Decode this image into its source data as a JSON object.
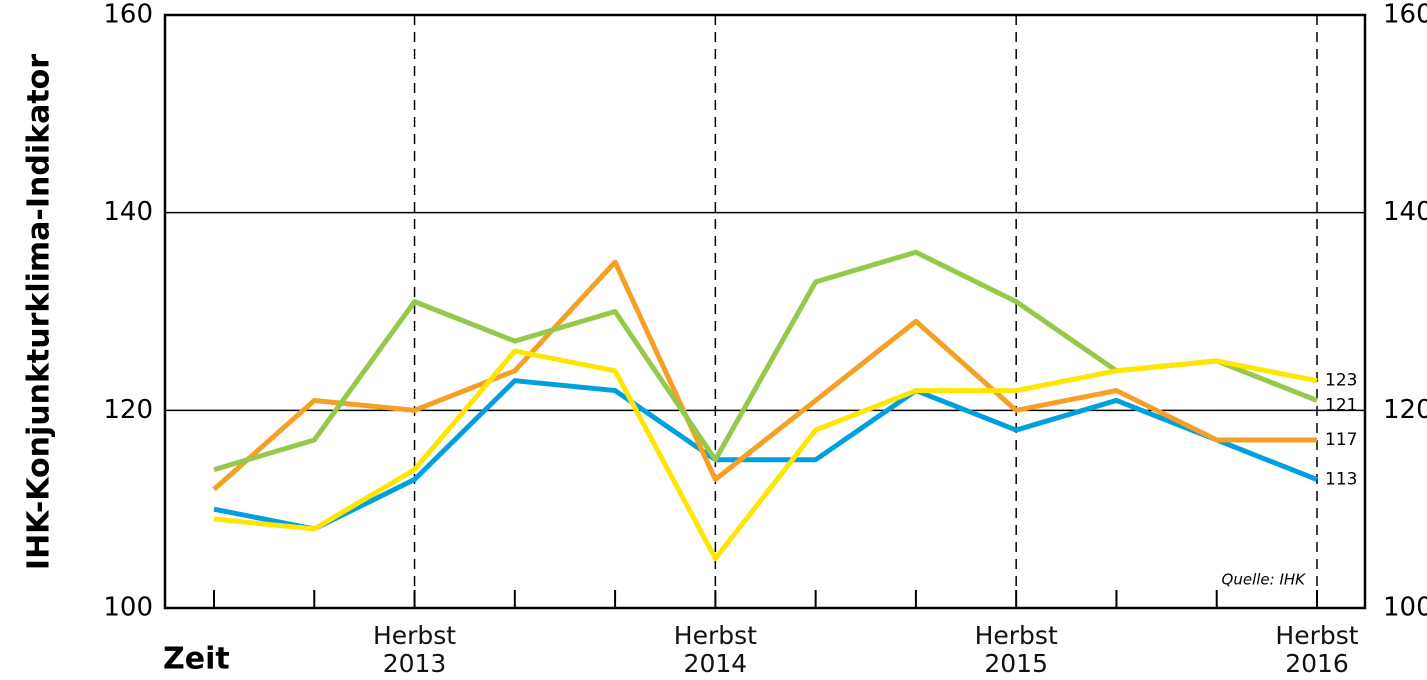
{
  "chart_data": {
    "type": "line",
    "ylabel": "IHK-Konjunkturklima-Indikator",
    "xlabel": "Zeit",
    "source": "Quelle: IHK",
    "categories": [
      null,
      null,
      "Herbst\n2013",
      null,
      null,
      "Herbst\n2014",
      null,
      null,
      "Herbst\n2015",
      null,
      null,
      "Herbst\n2016"
    ],
    "ylim": [
      100,
      160
    ],
    "yticks": [
      100,
      120,
      140,
      160
    ],
    "grid_lines": [
      120,
      140
    ],
    "series": [
      {
        "color": "#00a0e0",
        "values": [
          110,
          108,
          113,
          123,
          122,
          115,
          115,
          122,
          118,
          121,
          117,
          113
        ]
      },
      {
        "color": "#f5a024",
        "values": [
          112,
          121,
          120,
          124,
          135,
          113,
          121,
          129,
          120,
          122,
          117,
          117
        ]
      },
      {
        "color": "#96c84b",
        "values": [
          114,
          117,
          131,
          127,
          130,
          115,
          133,
          136,
          131,
          124,
          125,
          121
        ]
      },
      {
        "color": "#ffe600",
        "values": [
          109,
          108,
          114,
          126,
          124,
          105,
          118,
          122,
          122,
          124,
          125,
          123
        ]
      }
    ]
  }
}
